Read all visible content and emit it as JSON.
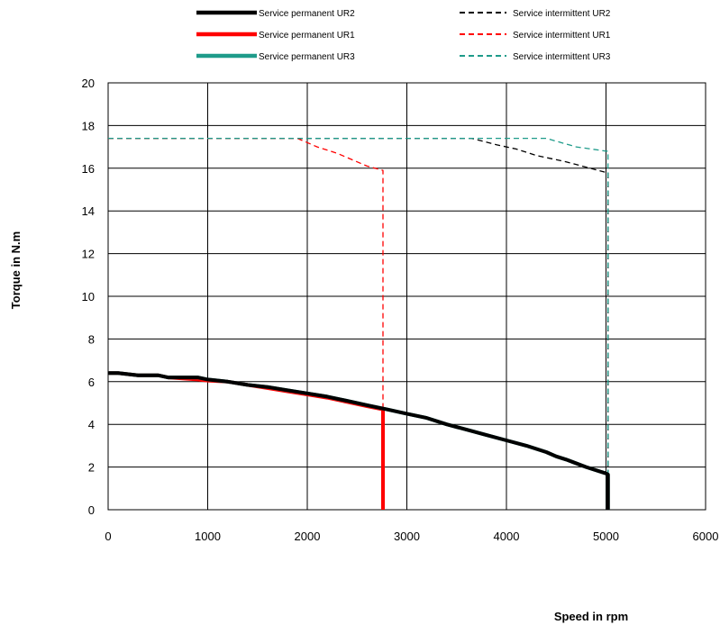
{
  "chart_data": {
    "type": "line",
    "xlabel": "Speed in rpm",
    "ylabel": "Torque in N.m",
    "xlim": [
      0,
      6000
    ],
    "ylim": [
      0,
      20
    ],
    "xticks": [
      0,
      1000,
      2000,
      3000,
      4000,
      5000,
      6000
    ],
    "yticks": [
      0,
      2,
      4,
      6,
      8,
      10,
      12,
      14,
      16,
      18,
      20
    ],
    "grid": true,
    "legend_position": "top",
    "series": [
      {
        "name": "Service permanent UR2",
        "color": "#000000",
        "style": "solid",
        "x": [
          0,
          100,
          300,
          500,
          600,
          900,
          1000,
          1200,
          1400,
          1600,
          1800,
          2000,
          2200,
          2400,
          2600,
          2800,
          3000,
          3200,
          3400,
          3600,
          3800,
          4000,
          4200,
          4400,
          4500,
          4600,
          4800,
          5000,
          5020,
          5020
        ],
        "y": [
          6.4,
          6.4,
          6.3,
          6.3,
          6.2,
          6.2,
          6.1,
          6.0,
          5.85,
          5.75,
          5.6,
          5.45,
          5.3,
          5.1,
          4.9,
          4.7,
          4.5,
          4.3,
          4.0,
          3.75,
          3.5,
          3.25,
          3.0,
          2.7,
          2.5,
          2.35,
          2.0,
          1.7,
          1.65,
          0
        ]
      },
      {
        "name": "Service permanent UR1",
        "color": "#ff0000",
        "style": "solid",
        "x": [
          0,
          100,
          300,
          500,
          600,
          900,
          1000,
          1200,
          1400,
          1600,
          1800,
          2000,
          2200,
          2400,
          2600,
          2760,
          2760
        ],
        "y": [
          6.4,
          6.4,
          6.3,
          6.3,
          6.2,
          6.1,
          6.05,
          6.0,
          5.85,
          5.7,
          5.55,
          5.4,
          5.25,
          5.05,
          4.85,
          4.7,
          0
        ]
      },
      {
        "name": "Service permanent UR3",
        "color": "#1e9b8a",
        "style": "solid",
        "x": [
          0,
          100,
          300,
          500,
          600,
          900,
          1000,
          1200,
          1400,
          1600,
          1800,
          2000,
          2200,
          2400,
          2600,
          2800,
          3000,
          3200,
          3400,
          3600,
          3800,
          4000,
          4200,
          4400,
          4500,
          4600,
          4800,
          5000,
          5020,
          5020
        ],
        "y": [
          6.4,
          6.4,
          6.3,
          6.3,
          6.2,
          6.2,
          6.1,
          6.0,
          5.85,
          5.75,
          5.6,
          5.45,
          5.3,
          5.1,
          4.9,
          4.7,
          4.5,
          4.3,
          4.0,
          3.75,
          3.5,
          3.25,
          3.0,
          2.7,
          2.5,
          2.35,
          2.0,
          1.7,
          1.65,
          0
        ]
      },
      {
        "name": "Service intermittent UR2",
        "color": "#000000",
        "style": "dashed",
        "x": [
          0,
          3650,
          3900,
          4100,
          4300,
          4600,
          5000,
          5020,
          5020
        ],
        "y": [
          17.4,
          17.4,
          17.1,
          16.9,
          16.6,
          16.3,
          15.8,
          15.8,
          0
        ]
      },
      {
        "name": "Service intermittent UR1",
        "color": "#ff0000",
        "style": "dashed",
        "x": [
          0,
          1900,
          2100,
          2300,
          2500,
          2600,
          2760,
          2760
        ],
        "y": [
          17.4,
          17.4,
          17.0,
          16.7,
          16.3,
          16.1,
          15.9,
          0
        ]
      },
      {
        "name": "Service intermittent UR3",
        "color": "#1e9b8a",
        "style": "dashed",
        "x": [
          0,
          4400,
          4550,
          4700,
          5000,
          5020,
          5020
        ],
        "y": [
          17.4,
          17.4,
          17.2,
          17.0,
          16.8,
          16.8,
          0
        ]
      }
    ]
  }
}
